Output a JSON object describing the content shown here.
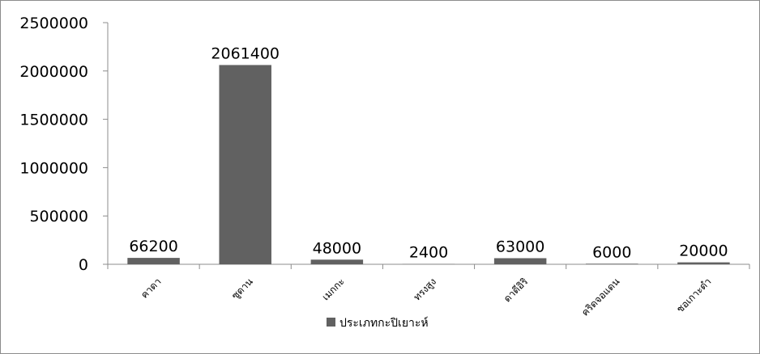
{
  "chart_data": {
    "type": "bar",
    "title": "",
    "xlabel": "",
    "ylabel": "",
    "categories": [
      "คาดา",
      "ซูดาน",
      "เมกกะ",
      "ทรงสูง",
      "ดาดีอิริ",
      "คริดจอแดน",
      "ชอเกาะดำ"
    ],
    "series": [
      {
        "name": "ประเภทกะปิเยาะห์",
        "values": [
          66200,
          2061400,
          48000,
          2400,
          63000,
          6000,
          20000
        ]
      }
    ],
    "ylim": [
      0,
      2500000
    ],
    "yticks": [
      0,
      500000,
      1000000,
      1500000,
      2000000,
      2500000
    ],
    "grid": false,
    "legend_position": "bottom",
    "colors": {
      "bar": "#616161",
      "axis": "#8c8c8c"
    }
  }
}
